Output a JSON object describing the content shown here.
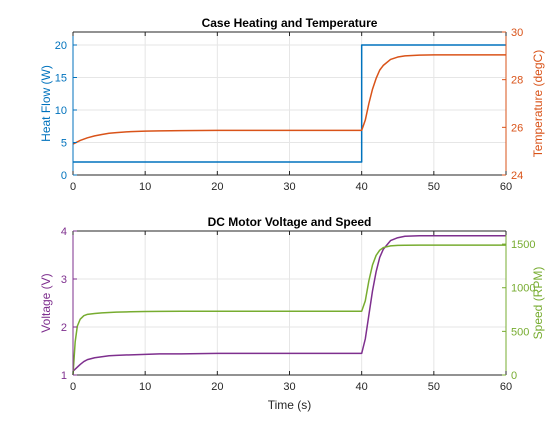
{
  "chart_data": [
    {
      "type": "line",
      "title": "Case Heating and Temperature",
      "xlabel": "",
      "xlim": [
        0,
        60
      ],
      "x_ticks": [
        0,
        10,
        20,
        30,
        40,
        50,
        60
      ],
      "grid": true,
      "left_axis": {
        "label": "Heat Flow (W)",
        "ylim": [
          0,
          22
        ],
        "ticks": [
          0,
          5,
          10,
          15,
          20
        ],
        "color": "#0072BD"
      },
      "right_axis": {
        "label": "Temperature (degC)",
        "ylim": [
          24,
          30
        ],
        "ticks": [
          24,
          26,
          28,
          30
        ],
        "color": "#D95319"
      },
      "series": [
        {
          "axis": "left",
          "color": "#0072BD",
          "x": [
            0,
            40,
            40,
            60
          ],
          "y": [
            2,
            2,
            20,
            20
          ]
        },
        {
          "axis": "right",
          "color": "#D95319",
          "x": [
            0,
            1,
            2,
            3,
            4,
            5,
            6,
            8,
            10,
            12,
            15,
            20,
            25,
            30,
            35,
            40,
            40.5,
            41,
            41.5,
            42,
            42.5,
            43,
            44,
            45,
            46,
            48,
            50,
            55,
            60
          ],
          "y": [
            25.3,
            25.45,
            25.56,
            25.64,
            25.7,
            25.75,
            25.78,
            25.82,
            25.84,
            25.85,
            25.86,
            25.87,
            25.87,
            25.87,
            25.87,
            25.87,
            26.3,
            27.0,
            27.6,
            28.05,
            28.4,
            28.6,
            28.85,
            28.95,
            29.0,
            29.03,
            29.04,
            29.04,
            29.04
          ]
        }
      ]
    },
    {
      "type": "line",
      "title": "DC Motor Voltage and Speed",
      "xlabel": "Time (s)",
      "xlim": [
        0,
        60
      ],
      "x_ticks": [
        0,
        10,
        20,
        30,
        40,
        50,
        60
      ],
      "grid": true,
      "left_axis": {
        "label": "Voltage (V)",
        "ylim": [
          1,
          4
        ],
        "ticks": [
          1,
          2,
          3,
          4
        ],
        "color": "#7E2F8E"
      },
      "right_axis": {
        "label": "Speed (RPM)",
        "ylim": [
          0,
          1650
        ],
        "ticks": [
          0,
          500,
          1000,
          1500
        ],
        "color": "#77AC30"
      },
      "series": [
        {
          "axis": "left",
          "color": "#7E2F8E",
          "x": [
            0,
            0.5,
            1,
            1.5,
            2,
            3,
            4,
            5,
            6,
            8,
            10,
            12,
            15,
            20,
            25,
            30,
            35,
            40,
            40.5,
            41,
            41.5,
            42,
            42.5,
            43,
            44,
            45,
            46,
            48,
            50,
            55,
            60
          ],
          "y": [
            1.08,
            1.15,
            1.22,
            1.28,
            1.32,
            1.36,
            1.38,
            1.4,
            1.41,
            1.42,
            1.43,
            1.44,
            1.44,
            1.45,
            1.45,
            1.45,
            1.45,
            1.45,
            1.75,
            2.25,
            2.75,
            3.15,
            3.45,
            3.62,
            3.8,
            3.86,
            3.89,
            3.9,
            3.9,
            3.9,
            3.9
          ]
        },
        {
          "axis": "right",
          "color": "#77AC30",
          "x": [
            0,
            0.3,
            0.6,
            1,
            1.5,
            2,
            3,
            4,
            5,
            6,
            8,
            10,
            12,
            15,
            20,
            25,
            30,
            35,
            40,
            40.5,
            41,
            41.5,
            42,
            42.5,
            43,
            44,
            45,
            46,
            48,
            50,
            55,
            60
          ],
          "y": [
            0,
            380,
            560,
            640,
            680,
            695,
            705,
            712,
            716,
            720,
            724,
            727,
            729,
            730,
            731,
            731,
            731,
            731,
            731,
            850,
            1080,
            1260,
            1370,
            1430,
            1460,
            1480,
            1485,
            1487,
            1488,
            1488,
            1488,
            1488
          ]
        }
      ]
    }
  ]
}
